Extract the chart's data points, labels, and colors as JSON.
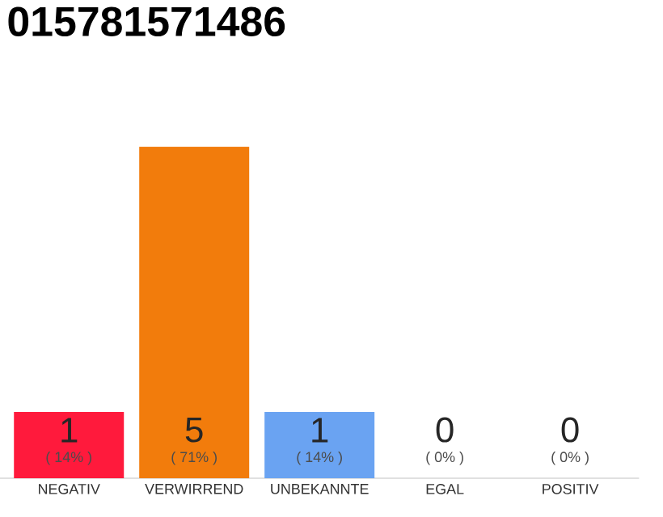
{
  "chart_data": {
    "type": "bar",
    "title": "015781571486",
    "categories": [
      "NEGATIV",
      "VERWIRREND",
      "UNBEKANNTE",
      "EGAL",
      "POSITIV"
    ],
    "values": [
      1,
      5,
      1,
      0,
      0
    ],
    "colors": [
      "#ff1a3c",
      "#f27c0c",
      "#6aa3f2",
      "#cccccc",
      "#cccccc"
    ],
    "ylim": [
      0,
      5
    ],
    "data_labels": true,
    "tick_labels": "x",
    "annotations": [
      "( 14% )",
      "( 71% )",
      "( 14% )",
      "( 0% )",
      "( 0% )"
    ]
  }
}
